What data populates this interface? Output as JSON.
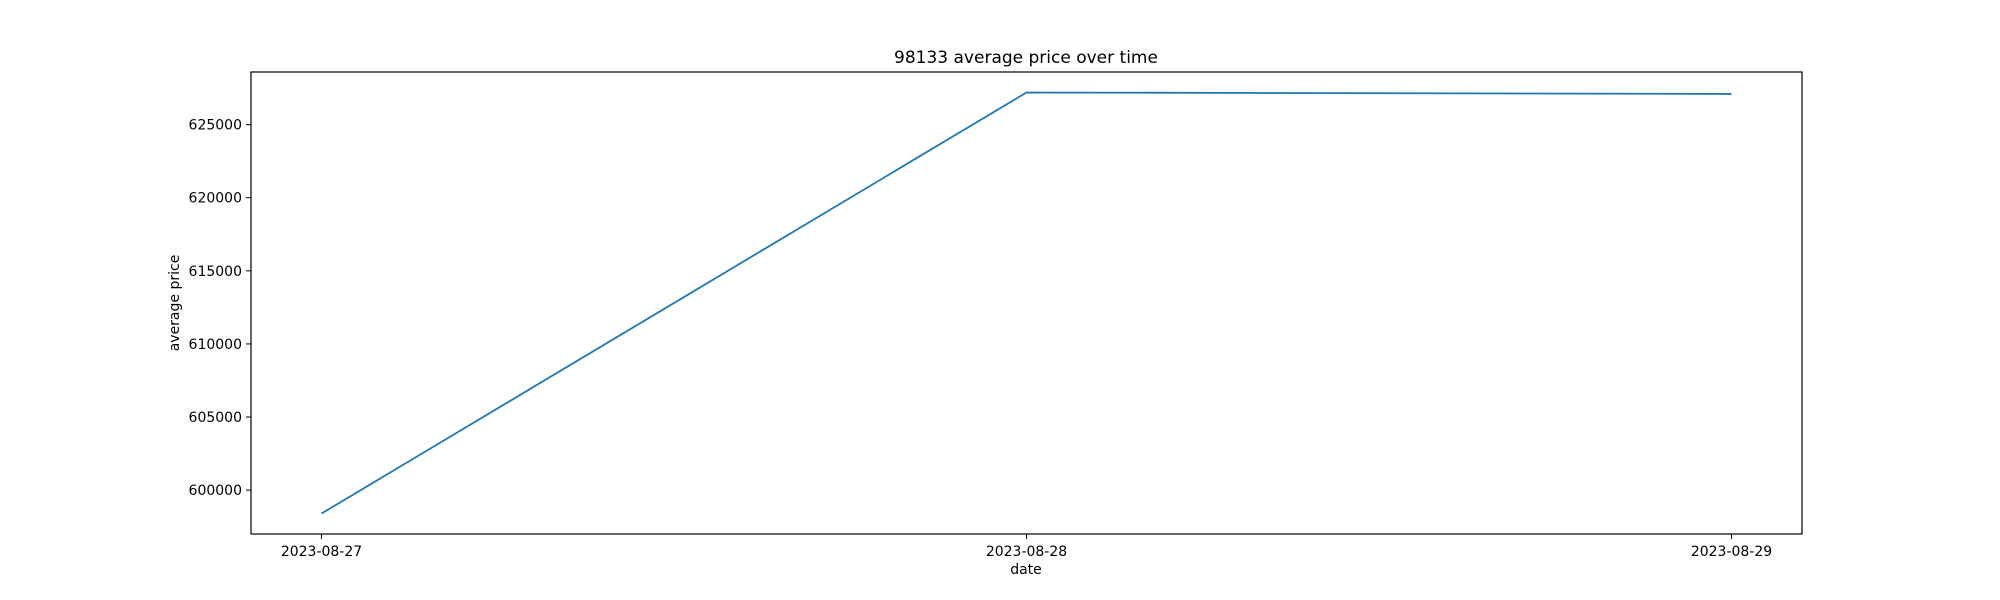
{
  "chart_data": {
    "type": "line",
    "title": "98133 average price over time",
    "xlabel": "date",
    "ylabel": "average price",
    "x": [
      "2023-08-27",
      "2023-08-28",
      "2023-08-29"
    ],
    "series": [
      {
        "values": [
          598400,
          627200,
          627100
        ],
        "color": "#1f77b4"
      }
    ],
    "ylim": [
      597000,
      628600
    ],
    "yticks": [
      600000,
      605000,
      610000,
      615000,
      620000,
      625000
    ],
    "xlim_index": [
      -0.1,
      2.1
    ],
    "grid": false,
    "legend": "none"
  }
}
